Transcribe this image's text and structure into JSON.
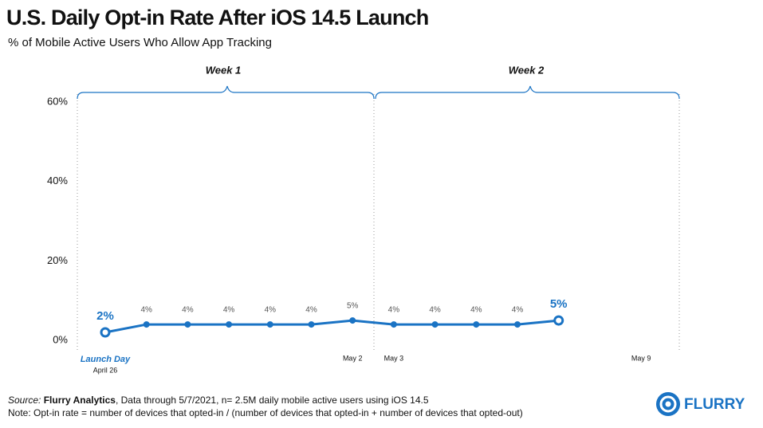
{
  "chart_data": {
    "type": "line",
    "title": "U.S. Daily Opt-in Rate After iOS 14.5 Launch",
    "subtitle": "% of Mobile Active Users Who Allow App Tracking",
    "categories": [
      "April 26",
      null,
      null,
      null,
      null,
      null,
      "May 2",
      "May 3",
      null,
      null,
      null,
      null,
      null,
      "May 9"
    ],
    "series": [
      {
        "name": "Opt-in rate",
        "color": "#1a73c4",
        "values": [
          2,
          4,
          4,
          4,
          4,
          4,
          5,
          4,
          4,
          4,
          4,
          5,
          null,
          null
        ],
        "value_labels": [
          "2%",
          "4%",
          "4%",
          "4%",
          "4%",
          "4%",
          "5%",
          "4%",
          "4%",
          "4%",
          "4%",
          "5%",
          null,
          null
        ]
      }
    ],
    "ylim": [
      0,
      60
    ],
    "yticks": [
      {
        "value": 0,
        "label": "0%"
      },
      {
        "value": 20,
        "label": "20%"
      },
      {
        "value": 40,
        "label": "40%"
      },
      {
        "value": 60,
        "label": "60%"
      }
    ],
    "grid": false,
    "annotations": {
      "launch": "Launch Day",
      "week1": "Week 1",
      "week2": "Week 2"
    },
    "source_label": "Source:",
    "source_name": "Flurry Analytics",
    "source_text": ", Data through 5/7/2021, n= 2.5M daily mobile active users using iOS 14.5",
    "note": "Note: Opt-in rate = number of devices that opted-in / (number of devices that opted-in + number of devices that opted-out)",
    "logo": "FLURRY"
  }
}
